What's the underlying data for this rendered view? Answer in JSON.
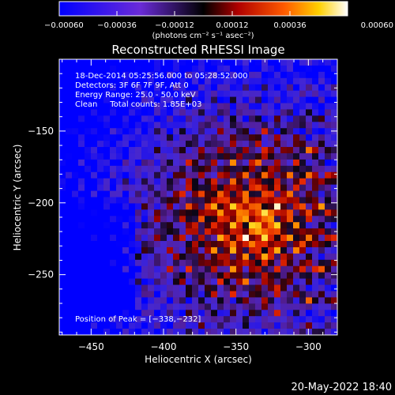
{
  "chart_data": {
    "type": "heatmap",
    "title": "Reconstructed RHESSI Image",
    "xlabel": "Heliocentric X (arcsec)",
    "ylabel": "Heliocentric Y (arcsec)",
    "xlim": [
      -472,
      -280
    ],
    "ylim": [
      -292,
      -100
    ],
    "x_ticks": [
      -450,
      -400,
      -350,
      -300
    ],
    "x_tick_labels": [
      "−450",
      "−400",
      "−350",
      "−300"
    ],
    "y_ticks": [
      -250,
      -200,
      -150
    ],
    "y_tick_labels": [
      "−250",
      "−200",
      "−150"
    ],
    "colorbar": {
      "range": [
        -0.0006,
        0.0006
      ],
      "ticks": [
        -0.0006,
        -0.00036,
        -0.00012,
        0.00012,
        0.00036,
        0.0006
      ],
      "tick_labels": [
        "−0.00060",
        "−0.00036",
        "−0.00012",
        "0.00012",
        "0.00036",
        "0.00060"
      ],
      "unit_label": "(photons cm⁻² s⁻¹ asec⁻²)"
    },
    "peak": [
      -338,
      -232
    ],
    "annotations": [
      "18-Dec-2014 05:25:56.000 to 05:28:52.000",
      "Detectors: 3F 6F 7F 9F, Att 0",
      "Energy Range: 25.0 - 50.0 keV",
      "Clean     Total counts: 1.85E+03"
    ],
    "peak_label": "Position of Peak = [−338,−232]"
  },
  "footer": {
    "timestamp": "20‑May‑2022 18:40"
  }
}
